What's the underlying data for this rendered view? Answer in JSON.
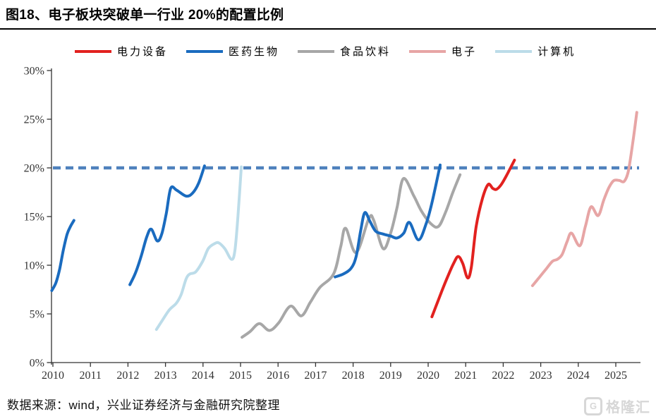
{
  "header": {
    "title": "图18、电子板块突破单一行业 20%的配置比例"
  },
  "source": {
    "text": "数据来源：wind，兴业证券经济与金融研究院整理"
  },
  "watermark": {
    "letter": "G",
    "text": "格隆汇"
  },
  "chart_data": {
    "type": "line",
    "title": "电子板块突破单一行业 20%的配置比例",
    "ylim": [
      0,
      30
    ],
    "xlim": [
      2010,
      2025.7
    ],
    "grid": false,
    "legend_position": "top",
    "yticks": {
      "values": [
        0,
        5,
        10,
        15,
        20,
        25,
        30
      ],
      "labels": [
        "0%",
        "5%",
        "10%",
        "15%",
        "20%",
        "25%",
        "30%"
      ]
    },
    "xticks": [
      2010,
      2011,
      2012,
      2013,
      2014,
      2015,
      2016,
      2017,
      2018,
      2019,
      2020,
      2021,
      2022,
      2023,
      2024,
      2025
    ],
    "reference_line": {
      "value": 20,
      "color": "#4f81bd",
      "style": "dashed"
    },
    "series": [
      {
        "name": "电力设备",
        "key": "power-equipment",
        "color": "#e2211f",
        "segments": [
          [
            [
              2020.1,
              4.7
            ],
            [
              2020.25,
              6.2
            ],
            [
              2020.4,
              7.7
            ],
            [
              2020.55,
              9.1
            ],
            [
              2020.68,
              10.2
            ],
            [
              2020.8,
              10.9
            ],
            [
              2020.92,
              10.2
            ],
            [
              2021.05,
              8.7
            ],
            [
              2021.15,
              9.8
            ],
            [
              2021.28,
              14.0
            ],
            [
              2021.45,
              16.9
            ],
            [
              2021.6,
              18.3
            ],
            [
              2021.72,
              17.9
            ],
            [
              2021.82,
              17.8
            ],
            [
              2021.95,
              18.3
            ],
            [
              2022.1,
              19.3
            ],
            [
              2022.3,
              20.8
            ]
          ]
        ]
      },
      {
        "name": "医药生物",
        "key": "pharma-bio",
        "color": "#1a6bbf",
        "segments": [
          [
            [
              2009.97,
              7.4
            ],
            [
              2010.08,
              8.2
            ],
            [
              2010.18,
              9.6
            ],
            [
              2010.28,
              11.6
            ],
            [
              2010.38,
              13.2
            ],
            [
              2010.47,
              14.0
            ],
            [
              2010.56,
              14.6
            ]
          ],
          [
            [
              2012.05,
              8.0
            ],
            [
              2012.2,
              9.2
            ],
            [
              2012.35,
              10.9
            ],
            [
              2012.5,
              12.9
            ],
            [
              2012.62,
              13.7
            ],
            [
              2012.78,
              12.5
            ],
            [
              2012.9,
              13.2
            ],
            [
              2013.02,
              15.3
            ],
            [
              2013.14,
              17.9
            ],
            [
              2013.3,
              17.7
            ],
            [
              2013.55,
              17.1
            ],
            [
              2013.72,
              17.4
            ],
            [
              2013.88,
              18.4
            ],
            [
              2014.04,
              20.2
            ]
          ],
          [
            [
              2017.52,
              8.8
            ],
            [
              2017.74,
              9.1
            ],
            [
              2017.95,
              9.7
            ],
            [
              2018.08,
              10.9
            ],
            [
              2018.2,
              13.5
            ],
            [
              2018.31,
              15.4
            ],
            [
              2018.45,
              14.5
            ],
            [
              2018.6,
              13.5
            ],
            [
              2018.8,
              13.2
            ],
            [
              2019.0,
              13.0
            ],
            [
              2019.17,
              12.8
            ],
            [
              2019.35,
              13.3
            ],
            [
              2019.5,
              14.4
            ],
            [
              2019.74,
              12.6
            ],
            [
              2019.95,
              14.3
            ],
            [
              2020.1,
              16.4
            ],
            [
              2020.32,
              20.3
            ]
          ]
        ]
      },
      {
        "name": "食品饮料",
        "key": "food-beverage",
        "color": "#a7a7a7",
        "segments": [
          [
            [
              2015.04,
              2.6
            ],
            [
              2015.26,
              3.2
            ],
            [
              2015.5,
              4.0
            ],
            [
              2015.77,
              3.3
            ],
            [
              2016.02,
              4.1
            ],
            [
              2016.33,
              5.8
            ],
            [
              2016.62,
              4.8
            ],
            [
              2016.86,
              6.2
            ],
            [
              2017.11,
              7.7
            ],
            [
              2017.48,
              9.1
            ],
            [
              2017.67,
              11.9
            ],
            [
              2017.8,
              13.8
            ],
            [
              2018.08,
              11.3
            ],
            [
              2018.42,
              14.8
            ],
            [
              2018.55,
              14.6
            ],
            [
              2018.8,
              11.7
            ],
            [
              2019.0,
              13.3
            ],
            [
              2019.17,
              15.9
            ],
            [
              2019.34,
              18.9
            ],
            [
              2019.62,
              17.1
            ],
            [
              2019.83,
              15.5
            ],
            [
              2020.09,
              14.2
            ],
            [
              2020.28,
              14.0
            ],
            [
              2020.47,
              15.5
            ],
            [
              2020.66,
              17.5
            ],
            [
              2020.85,
              19.3
            ]
          ]
        ]
      },
      {
        "name": "电子",
        "key": "electronics",
        "color": "#e7a5a5",
        "segments": [
          [
            [
              2022.78,
              7.9
            ],
            [
              2022.93,
              8.6
            ],
            [
              2023.12,
              9.5
            ],
            [
              2023.31,
              10.4
            ],
            [
              2023.44,
              10.6
            ],
            [
              2023.57,
              11.1
            ],
            [
              2023.7,
              12.4
            ],
            [
              2023.82,
              13.3
            ],
            [
              2024.04,
              12.0
            ],
            [
              2024.19,
              14.0
            ],
            [
              2024.34,
              16.0
            ],
            [
              2024.53,
              15.1
            ],
            [
              2024.68,
              16.7
            ],
            [
              2024.82,
              18.0
            ],
            [
              2024.95,
              18.7
            ],
            [
              2025.1,
              18.7
            ],
            [
              2025.22,
              18.6
            ],
            [
              2025.33,
              19.6
            ],
            [
              2025.45,
              22.5
            ],
            [
              2025.56,
              25.7
            ]
          ]
        ]
      },
      {
        "name": "计算机",
        "key": "computer",
        "color": "#bcdce9",
        "segments": [
          [
            [
              2012.76,
              3.4
            ],
            [
              2012.91,
              4.3
            ],
            [
              2013.1,
              5.4
            ],
            [
              2013.29,
              6.1
            ],
            [
              2013.42,
              7.0
            ],
            [
              2013.55,
              8.6
            ],
            [
              2013.65,
              9.1
            ],
            [
              2013.8,
              9.3
            ],
            [
              2013.99,
              10.4
            ],
            [
              2014.14,
              11.7
            ],
            [
              2014.3,
              12.2
            ],
            [
              2014.42,
              12.3
            ],
            [
              2014.58,
              11.7
            ],
            [
              2014.76,
              10.6
            ],
            [
              2014.85,
              11.5
            ],
            [
              2014.93,
              15.0
            ],
            [
              2015.02,
              20.1
            ]
          ]
        ]
      }
    ]
  }
}
